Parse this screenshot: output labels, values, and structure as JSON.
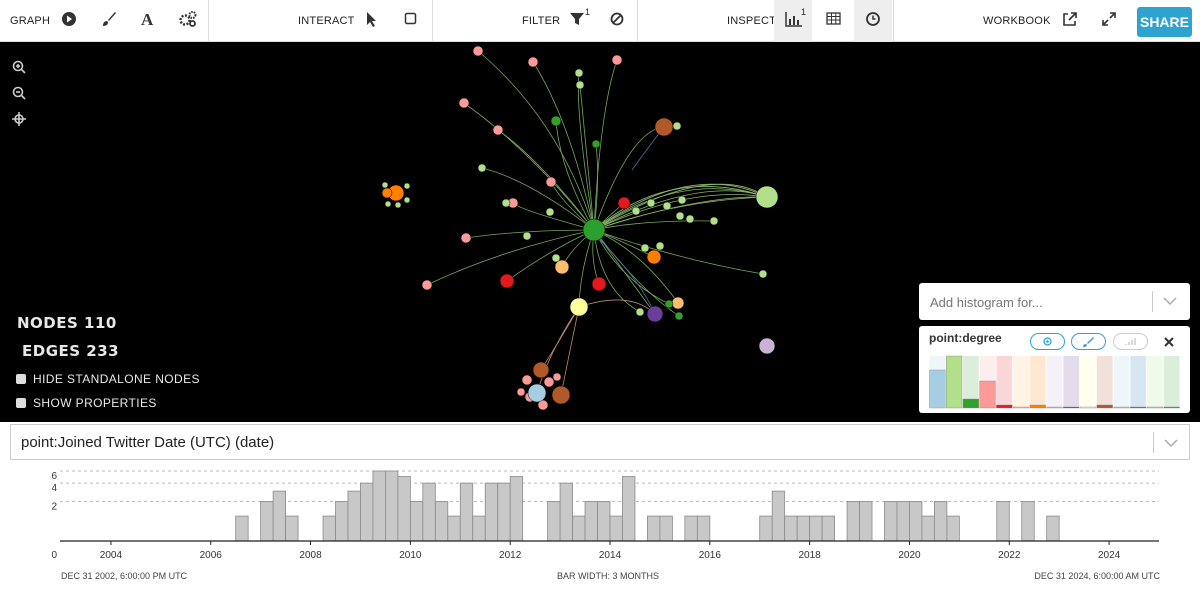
{
  "toolbar": {
    "graph": "GRAPH",
    "interact": "INTERACT",
    "filter": "FILTER",
    "filter_badge": "1",
    "inspect": "INSPECT",
    "inspect_badge": "1",
    "workbook": "WORKBOOK",
    "share": "SHARE"
  },
  "stats": {
    "nodes": "NODES 110",
    "edges": "EDGES 233"
  },
  "options": [
    "HIDE STANDALONE NODES",
    "SHOW PROPERTIES"
  ],
  "histogram_panel": {
    "placeholder": "Add histogram for...",
    "attribute": "point:degree",
    "colors": [
      "#a6cee3",
      "#b2df8a",
      "#33a02c",
      "#fb9a99",
      "#e31a1c",
      "#fdbf6f",
      "#ff7f00",
      "#cab2d6",
      "#6a3d9a",
      "#ffff99",
      "#b15928",
      "#a6cee3",
      "#1f78b4",
      "#b2df8a",
      "#33a02c"
    ],
    "values": [
      38,
      52,
      9,
      27,
      3,
      1,
      3,
      1,
      1,
      1,
      3,
      1,
      1,
      1,
      1
    ]
  },
  "chart_data": {
    "type": "histogram",
    "title": "point:Joined Twitter Date (UTC) (date)",
    "bins": [
      2006.5,
      2006.75,
      2007,
      2007.25,
      2007.5,
      2007.75,
      2008,
      2008.25,
      2008.5,
      2008.75,
      2009,
      2009.25,
      2009.5,
      2009.75,
      2010,
      2010.25,
      2010.5,
      2010.75,
      2011,
      2011.25,
      2011.5,
      2011.75,
      2012,
      2012.25,
      2012.5,
      2012.75,
      2013,
      2013.25,
      2013.5,
      2013.75,
      2014,
      2014.25,
      2014.5,
      2014.75,
      2015,
      2015.25,
      2015.5,
      2015.75,
      2016,
      2016.25,
      2016.5,
      2016.75,
      2017,
      2017.25,
      2017.5,
      2017.75,
      2018,
      2018.25,
      2018.5,
      2018.75,
      2019,
      2019.25,
      2019.5,
      2019.75,
      2020,
      2020.25,
      2020.5,
      2020.75,
      2021,
      2021.25,
      2021.5,
      2021.75,
      2022,
      2022.25,
      2022.5,
      2022.75,
      2023
    ],
    "values": [
      1,
      0,
      2,
      3,
      1,
      0,
      0,
      1,
      2,
      3,
      4,
      6,
      6,
      5,
      2,
      4,
      2,
      1,
      4,
      1,
      4,
      4,
      5,
      0,
      0,
      2,
      4,
      1,
      2,
      2,
      1,
      5,
      0,
      1,
      1,
      0,
      1,
      1,
      0,
      0,
      0,
      0,
      1,
      3,
      1,
      1,
      1,
      1,
      0,
      2,
      2,
      0,
      2,
      2,
      2,
      1,
      2,
      1,
      0,
      0,
      0,
      2,
      0,
      2,
      0,
      1
    ],
    "color": "#c8c8c8",
    "xlim": [
      2003,
      2025
    ],
    "xticks": [
      2004,
      2006,
      2008,
      2010,
      2012,
      2014,
      2016,
      2018,
      2020,
      2022,
      2024
    ],
    "ylim": [
      0,
      6
    ],
    "yticks": [
      0,
      2,
      4,
      6
    ],
    "yscale": "log1p",
    "grid": true,
    "start_label": "DEC 31 2002, 6:00:00 PM UTC",
    "bin_width_label": "BAR WIDTH: 3 MONTHS",
    "end_label": "DEC 31 2024, 6:00:00 AM UTC"
  }
}
